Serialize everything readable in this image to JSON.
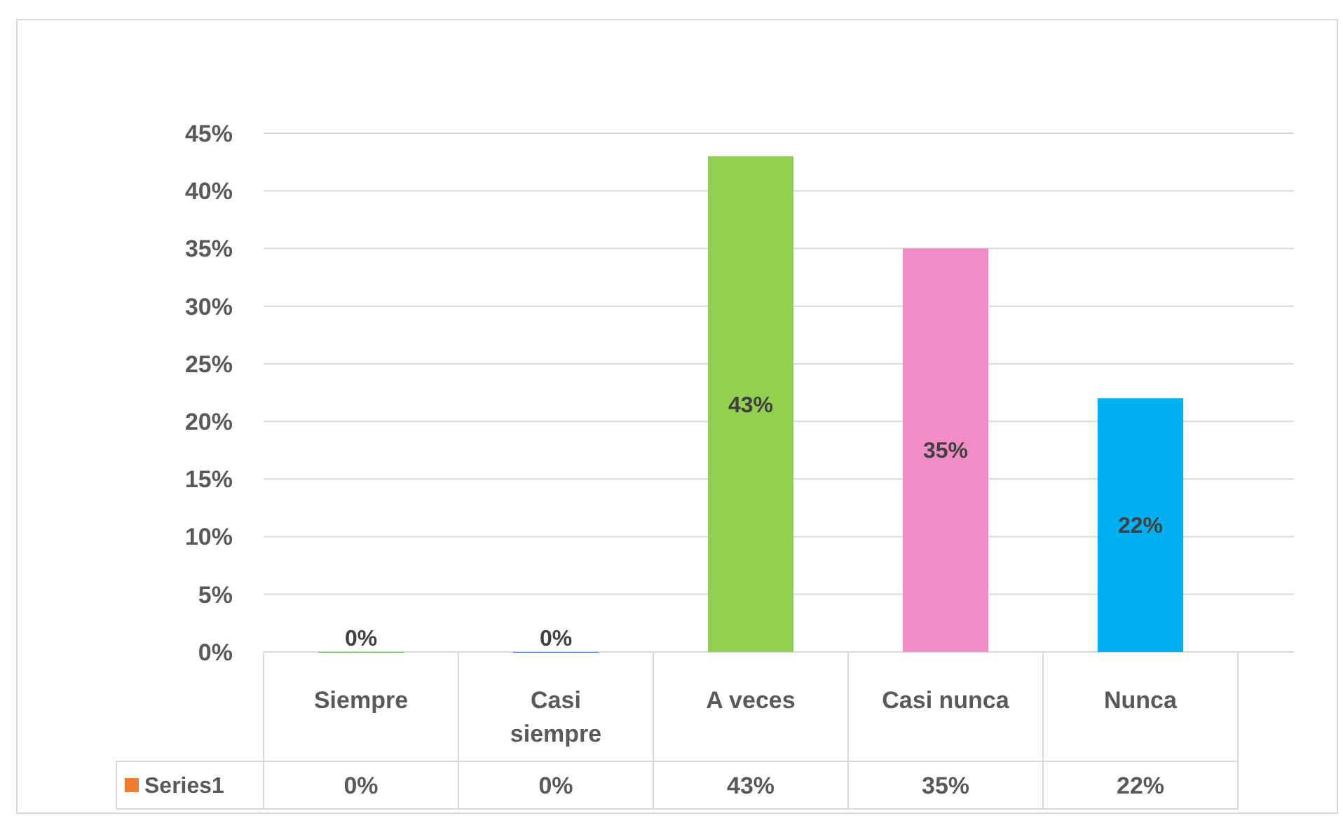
{
  "chart_data": {
    "type": "bar",
    "categories": [
      "Siempre",
      "Casi siempre",
      "A veces",
      "Casi nunca",
      "Nunca"
    ],
    "series": [
      {
        "name": "Series1",
        "color": "#ed7d31",
        "values": [
          0,
          0,
          43,
          35,
          22
        ],
        "value_labels": [
          "0%",
          "0%",
          "43%",
          "35%",
          "22%"
        ],
        "colors": [
          "#70ad47",
          "#4472c4",
          "#92d050",
          "#f28cc6",
          "#00b0f0"
        ]
      }
    ],
    "ylim": [
      0,
      45
    ],
    "yticks": [
      {
        "value": 0,
        "label": "0%"
      },
      {
        "value": 5,
        "label": "5%"
      },
      {
        "value": 10,
        "label": "10%"
      },
      {
        "value": 15,
        "label": "15%"
      },
      {
        "value": 20,
        "label": "20%"
      },
      {
        "value": 25,
        "label": "25%"
      },
      {
        "value": 30,
        "label": "30%"
      },
      {
        "value": 35,
        "label": "35%"
      },
      {
        "value": 40,
        "label": "40%"
      },
      {
        "value": 45,
        "label": "45%"
      }
    ],
    "grid": true,
    "legend": "bottom"
  }
}
